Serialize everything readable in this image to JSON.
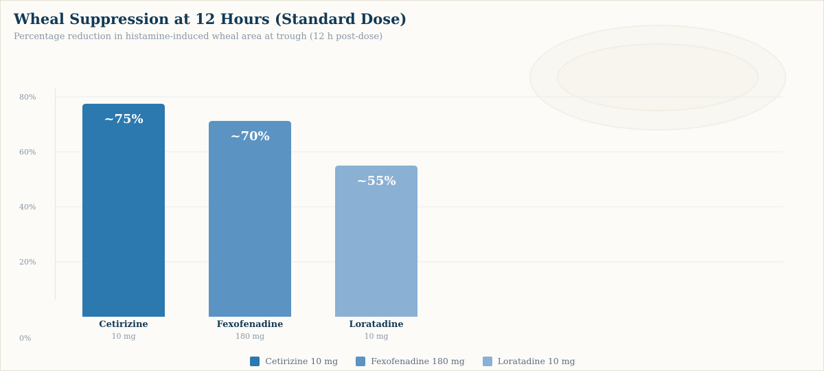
{
  "colors": {
    "title": "#123a56",
    "subtitle": "#8796a6",
    "axis_text": "#8796a6",
    "grid": "#e9ecef",
    "category_label": "#123a56",
    "category_sublabel": "#8796a6",
    "bar_value_text": "#ffffff"
  },
  "chart_data": {
    "type": "bar",
    "title": "Wheal Suppression at 12 Hours (Standard Dose)",
    "subtitle": "Percentage reduction in histamine-induced wheal area at trough (12 h post-dose)",
    "xlabel": "",
    "ylabel": "",
    "ylim": [
      0,
      84
    ],
    "yticks": [
      0,
      20,
      40,
      60,
      80
    ],
    "ytick_labels": [
      "0%",
      "20%",
      "40%",
      "60%",
      "80%"
    ],
    "grid": true,
    "legend_position": "bottom-center",
    "categories": [
      "Cetirizine",
      "Fexofenadine",
      "Loratadine"
    ],
    "category_sublabels": [
      "10 mg",
      "180 mg",
      "10 mg"
    ],
    "values": [
      75,
      70,
      55
    ],
    "value_labels": [
      "~75%",
      "~70%",
      "~55%"
    ],
    "bar_colors": [
      "#2b79ae",
      "#5b93c2",
      "#8ab0d4"
    ],
    "legend": [
      {
        "label": "Cetirizine 10 mg",
        "color": "#2b79ae"
      },
      {
        "label": "Fexofenadine 180 mg",
        "color": "#5b93c2"
      },
      {
        "label": "Loratadine 10 mg",
        "color": "#8ab0d4"
      }
    ]
  }
}
